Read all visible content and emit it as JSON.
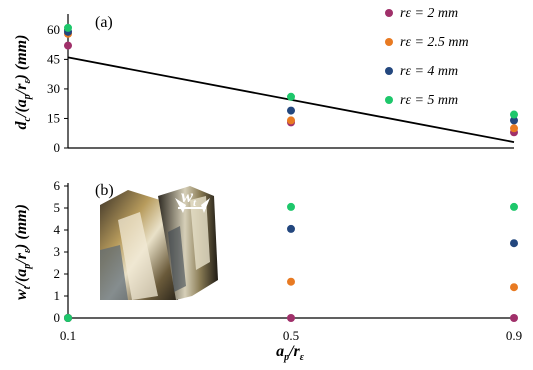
{
  "chart_data": [
    {
      "type": "scatter",
      "panel_label": "(a)",
      "ylabel": "dc /(ap /rε) (mm)",
      "xlabel": "",
      "x_ticks": [
        "0.1",
        "0.5",
        "0.9"
      ],
      "y_ticks": [
        "0",
        "15",
        "30",
        "45",
        "60"
      ],
      "xlim": [
        0.1,
        0.9
      ],
      "ylim": [
        0,
        65
      ],
      "grid": false,
      "legend": {
        "placement": "top-right"
      },
      "series": [
        {
          "name": "rε = 2 mm",
          "color": "#a0306a",
          "points": [
            [
              0.1,
              52
            ],
            [
              0.5,
              13
            ],
            [
              0.9,
              8
            ]
          ]
        },
        {
          "name": "rε = 2.5 mm",
          "color": "#e87a22",
          "points": [
            [
              0.1,
              58
            ],
            [
              0.5,
              14
            ],
            [
              0.9,
              10
            ]
          ]
        },
        {
          "name": "rε = 4 mm",
          "color": "#23477e",
          "points": [
            [
              0.1,
              59
            ],
            [
              0.5,
              19
            ],
            [
              0.9,
              14
            ]
          ]
        },
        {
          "name": "rε = 5 mm",
          "color": "#1ec76b",
          "points": [
            [
              0.1,
              61
            ],
            [
              0.5,
              26
            ],
            [
              0.9,
              17
            ]
          ]
        }
      ],
      "trend_line": {
        "color": "#000000",
        "points": [
          [
            0.1,
            46
          ],
          [
            0.9,
            3
          ]
        ]
      }
    },
    {
      "type": "scatter",
      "panel_label": "(b)",
      "ylabel": "wt /(ap /rε) (mm)",
      "xlabel": "ap /rε",
      "x_ticks": [
        "0.1",
        "0.5",
        "0.9"
      ],
      "y_ticks": [
        "0",
        "1",
        "2",
        "3",
        "4",
        "5",
        "6"
      ],
      "xlim": [
        0.1,
        0.9
      ],
      "ylim": [
        0,
        6
      ],
      "grid": false,
      "inset_label": "wt",
      "series": [
        {
          "name": "rε = 2 mm",
          "color": "#a0306a",
          "points": [
            [
              0.1,
              0
            ],
            [
              0.5,
              0
            ],
            [
              0.9,
              0
            ]
          ]
        },
        {
          "name": "rε = 2.5 mm",
          "color": "#e87a22",
          "points": [
            [
              0.1,
              0
            ],
            [
              0.5,
              1.65
            ],
            [
              0.9,
              1.4
            ]
          ]
        },
        {
          "name": "rε = 4 mm",
          "color": "#23477e",
          "points": [
            [
              0.1,
              0
            ],
            [
              0.5,
              4.05
            ],
            [
              0.9,
              3.4
            ]
          ]
        },
        {
          "name": "rε = 5 mm",
          "color": "#1ec76b",
          "points": [
            [
              0.1,
              0
            ],
            [
              0.5,
              5.05
            ],
            [
              0.9,
              5.05
            ]
          ]
        }
      ]
    }
  ]
}
